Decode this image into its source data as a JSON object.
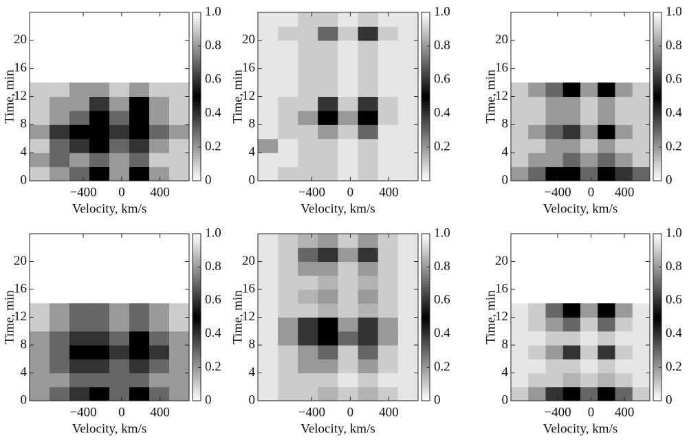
{
  "chart_data": [
    {
      "type": "heatmap",
      "x_label": "Velocity, km/s",
      "y_label": "Time, min",
      "x": [
        -856,
        -648,
        -440,
        -232,
        -24,
        184,
        392,
        600
      ],
      "y": [
        1,
        3,
        5,
        7,
        9,
        11,
        13,
        15,
        17,
        19,
        21,
        23
      ],
      "values": [
        [
          0.1,
          0.2,
          0.3,
          0.5,
          0.2,
          0.5,
          0.2,
          0.1
        ],
        [
          0.2,
          0.3,
          0.2,
          0.3,
          0.2,
          0.3,
          0.1,
          0.1
        ],
        [
          0.1,
          0.3,
          0.4,
          0.5,
          0.3,
          0.4,
          0.2,
          0.1
        ],
        [
          0.2,
          0.4,
          0.5,
          0.5,
          0.4,
          0.5,
          0.3,
          0.2
        ],
        [
          0.1,
          0.2,
          0.3,
          0.5,
          0.3,
          0.5,
          0.2,
          0.1
        ],
        [
          0.1,
          0.2,
          0.2,
          0.4,
          0.2,
          0.5,
          0.2,
          0.1
        ],
        [
          0.1,
          0.1,
          0.2,
          0.2,
          0.1,
          0.2,
          0.1,
          0.1
        ],
        [
          null,
          null,
          null,
          null,
          null,
          null,
          null,
          null
        ],
        [
          null,
          null,
          null,
          null,
          null,
          null,
          null,
          null
        ],
        [
          null,
          null,
          null,
          null,
          null,
          null,
          null,
          null
        ],
        [
          null,
          null,
          null,
          null,
          null,
          null,
          null,
          null
        ],
        [
          null,
          null,
          null,
          null,
          null,
          null,
          null,
          null
        ]
      ],
      "xlim": [
        -960,
        704
      ],
      "ylim": [
        0,
        24
      ],
      "xticks": [
        {
          "value": -400,
          "label": "−400"
        },
        0,
        400
      ],
      "yticks": [
        0,
        4,
        8,
        12,
        16,
        20
      ],
      "clim": [
        0,
        1
      ],
      "cticks": [
        0,
        0.2,
        0.4,
        0.6,
        0.8,
        {
          "value": 1,
          "label": "1.0"
        }
      ]
    },
    {
      "type": "heatmap",
      "x_label": "Velocity, km/s",
      "y_label": "Time, min",
      "x": [
        -856,
        -648,
        -440,
        -232,
        -24,
        184,
        392,
        600
      ],
      "y": [
        1,
        3,
        5,
        7,
        9,
        11,
        13,
        15,
        17,
        19,
        21,
        23
      ],
      "values": [
        [
          0.05,
          0.1,
          0.1,
          0.1,
          0.05,
          0.1,
          0.05,
          0.05
        ],
        [
          0.05,
          0.05,
          0.1,
          0.1,
          0.05,
          0.1,
          0.05,
          0.05
        ],
        [
          0.2,
          0.05,
          0.1,
          0.1,
          0.05,
          0.1,
          0.05,
          0.05
        ],
        [
          0.05,
          0.1,
          0.1,
          0.2,
          0.1,
          0.3,
          0.05,
          0.05
        ],
        [
          0.05,
          0.1,
          0.2,
          0.5,
          0.2,
          0.5,
          0.1,
          0.05
        ],
        [
          0.05,
          0.1,
          0.1,
          0.4,
          0.1,
          0.4,
          0.1,
          0.05
        ],
        [
          0.05,
          0.05,
          0.1,
          0.1,
          0.05,
          0.1,
          0.05,
          0.05
        ],
        [
          0.05,
          0.05,
          0.1,
          0.1,
          0.05,
          0.1,
          0.05,
          0.05
        ],
        [
          0.05,
          0.05,
          0.1,
          0.1,
          0.05,
          0.1,
          0.05,
          0.05
        ],
        [
          0.05,
          0.05,
          0.1,
          0.1,
          0.05,
          0.1,
          0.05,
          0.05
        ],
        [
          0.05,
          0.1,
          0.1,
          0.3,
          0.1,
          0.4,
          0.1,
          0.05
        ],
        [
          0.05,
          0.05,
          0.1,
          0.1,
          0.05,
          0.1,
          0.05,
          0.05
        ]
      ],
      "xlim": [
        -960,
        704
      ],
      "ylim": [
        0,
        24
      ],
      "xticks": [
        {
          "value": -400,
          "label": "−400"
        },
        0,
        400
      ],
      "yticks": [
        0,
        4,
        8,
        12,
        16,
        20
      ],
      "clim": [
        0,
        1
      ],
      "cticks": [
        0.2,
        0.4,
        0.6,
        0.8,
        {
          "value": 1,
          "label": "1.0"
        }
      ]
    },
    {
      "type": "heatmap",
      "x_label": "Velocity, km/s",
      "y_label": "Time, min",
      "x": [
        -856,
        -648,
        -440,
        -232,
        -24,
        184,
        392,
        600
      ],
      "y": [
        1,
        3,
        5,
        7,
        9,
        11,
        13,
        15,
        17,
        19,
        21,
        23
      ],
      "values": [
        [
          0.2,
          0.3,
          0.5,
          0.5,
          0.3,
          0.5,
          0.4,
          0.3
        ],
        [
          0.1,
          0.2,
          0.2,
          0.3,
          0.2,
          0.3,
          0.2,
          0.1
        ],
        [
          0.1,
          0.1,
          0.2,
          0.2,
          0.1,
          0.2,
          0.1,
          0.1
        ],
        [
          0.1,
          0.2,
          0.3,
          0.4,
          0.2,
          0.5,
          0.2,
          0.1
        ],
        [
          0.1,
          0.1,
          0.2,
          0.2,
          0.1,
          0.2,
          0.1,
          0.1
        ],
        [
          0.1,
          0.1,
          0.2,
          0.2,
          0.1,
          0.2,
          0.1,
          0.1
        ],
        [
          0.1,
          0.2,
          0.3,
          0.5,
          0.2,
          0.5,
          0.2,
          0.1
        ],
        [
          null,
          null,
          null,
          null,
          null,
          null,
          null,
          null
        ],
        [
          null,
          null,
          null,
          null,
          null,
          null,
          null,
          null
        ],
        [
          null,
          null,
          null,
          null,
          null,
          null,
          null,
          null
        ],
        [
          null,
          null,
          null,
          null,
          null,
          null,
          null,
          null
        ],
        [
          null,
          null,
          null,
          null,
          null,
          null,
          null,
          null
        ]
      ],
      "xlim": [
        -960,
        704
      ],
      "ylim": [
        0,
        24
      ],
      "xticks": [
        {
          "value": -400,
          "label": "−400"
        },
        0,
        400
      ],
      "yticks": [
        0,
        4,
        8,
        12,
        16,
        20
      ],
      "clim": [
        0,
        1
      ],
      "cticks": [
        0,
        0.2,
        0.4,
        0.6,
        0.8,
        {
          "value": 1,
          "label": "1.0"
        }
      ]
    },
    {
      "type": "heatmap",
      "x_label": "Velocity, km/s",
      "y_label": "Time, min",
      "x": [
        -856,
        -648,
        -440,
        -232,
        -24,
        184,
        392,
        600
      ],
      "y": [
        1,
        3,
        5,
        7,
        9,
        11,
        13,
        15,
        17,
        19,
        21,
        23
      ],
      "values": [
        [
          0.2,
          0.3,
          0.4,
          0.5,
          0.3,
          0.5,
          0.3,
          0.2
        ],
        [
          0.2,
          0.2,
          0.3,
          0.3,
          0.3,
          0.3,
          0.2,
          0.2
        ],
        [
          0.2,
          0.3,
          0.4,
          0.4,
          0.3,
          0.4,
          0.3,
          0.2
        ],
        [
          0.2,
          0.3,
          0.5,
          0.5,
          0.4,
          0.5,
          0.4,
          0.2
        ],
        [
          0.2,
          0.3,
          0.4,
          0.4,
          0.3,
          0.5,
          0.3,
          0.2
        ],
        [
          0.1,
          0.2,
          0.3,
          0.3,
          0.2,
          0.3,
          0.2,
          0.1
        ],
        [
          0.1,
          0.2,
          0.3,
          0.3,
          0.2,
          0.3,
          0.2,
          0.1
        ],
        [
          null,
          null,
          null,
          null,
          null,
          null,
          null,
          null
        ],
        [
          null,
          null,
          null,
          null,
          null,
          null,
          null,
          null
        ],
        [
          null,
          null,
          null,
          null,
          null,
          null,
          null,
          null
        ],
        [
          null,
          null,
          null,
          null,
          null,
          null,
          null,
          null
        ],
        [
          null,
          null,
          null,
          null,
          null,
          null,
          null,
          null
        ]
      ],
      "xlim": [
        -960,
        704
      ],
      "ylim": [
        0,
        24
      ],
      "xticks": [
        {
          "value": -400,
          "label": "−400"
        },
        0,
        400
      ],
      "yticks": [
        0,
        4,
        8,
        12,
        16,
        20
      ],
      "clim": [
        0,
        1
      ],
      "cticks": [
        0,
        0.2,
        0.4,
        0.6,
        0.8,
        {
          "value": 1,
          "label": "1.0"
        }
      ]
    },
    {
      "type": "heatmap",
      "x_label": "Velocity, km/s",
      "y_label": "Time, min",
      "x": [
        -856,
        -648,
        -440,
        -232,
        -24,
        184,
        392,
        600
      ],
      "y": [
        1,
        3,
        5,
        7,
        9,
        11,
        13,
        15,
        17,
        19,
        21,
        23
      ],
      "values": [
        [
          0.05,
          0.1,
          0.1,
          0.15,
          0.1,
          0.15,
          0.1,
          0.05
        ],
        [
          0.05,
          0.1,
          0.1,
          0.1,
          0.05,
          0.1,
          0.05,
          0.05
        ],
        [
          0.05,
          0.1,
          0.2,
          0.2,
          0.1,
          0.2,
          0.1,
          0.05
        ],
        [
          0.05,
          0.1,
          0.2,
          0.3,
          0.1,
          0.3,
          0.1,
          0.05
        ],
        [
          0.05,
          0.2,
          0.4,
          0.5,
          0.3,
          0.4,
          0.2,
          0.05
        ],
        [
          0.05,
          0.2,
          0.4,
          0.5,
          0.2,
          0.4,
          0.2,
          0.05
        ],
        [
          0.05,
          0.1,
          0.1,
          0.15,
          0.1,
          0.15,
          0.1,
          0.05
        ],
        [
          0.05,
          0.1,
          0.15,
          0.2,
          0.1,
          0.2,
          0.1,
          0.05
        ],
        [
          0.05,
          0.1,
          0.1,
          0.15,
          0.1,
          0.15,
          0.1,
          0.05
        ],
        [
          0.05,
          0.1,
          0.2,
          0.2,
          0.1,
          0.2,
          0.1,
          0.05
        ],
        [
          0.05,
          0.1,
          0.3,
          0.4,
          0.2,
          0.4,
          0.1,
          0.05
        ],
        [
          0.05,
          0.1,
          0.15,
          0.2,
          0.1,
          0.2,
          0.1,
          0.05
        ]
      ],
      "xlim": [
        -960,
        704
      ],
      "ylim": [
        0,
        24
      ],
      "xticks": [
        {
          "value": -400,
          "label": "−400"
        },
        0,
        400
      ],
      "yticks": [
        0,
        4,
        8,
        12,
        16,
        20
      ],
      "clim": [
        0,
        1
      ],
      "cticks": [
        0,
        0.2,
        0.4,
        0.6,
        0.8,
        {
          "value": 1,
          "label": "1.0"
        }
      ]
    },
    {
      "type": "heatmap",
      "x_label": "Velocity, km/s",
      "y_label": "Time, min",
      "x": [
        -856,
        -648,
        -440,
        -232,
        -24,
        184,
        392,
        600
      ],
      "y": [
        1,
        3,
        5,
        7,
        9,
        11,
        13,
        15,
        17,
        19,
        21,
        23
      ],
      "values": [
        [
          0.1,
          0.2,
          0.4,
          0.5,
          0.3,
          0.5,
          0.3,
          0.1
        ],
        [
          0.05,
          0.1,
          0.1,
          0.15,
          0.1,
          0.15,
          0.1,
          0.05
        ],
        [
          0.05,
          0.05,
          0.1,
          0.1,
          0.05,
          0.1,
          0.05,
          0.05
        ],
        [
          0.05,
          0.1,
          0.2,
          0.4,
          0.1,
          0.4,
          0.1,
          0.05
        ],
        [
          0.05,
          0.05,
          0.1,
          0.1,
          0.05,
          0.1,
          0.05,
          0.05
        ],
        [
          0.05,
          0.1,
          0.2,
          0.3,
          0.1,
          0.3,
          0.1,
          0.05
        ],
        [
          0.05,
          0.1,
          0.3,
          0.5,
          0.2,
          0.5,
          0.2,
          0.05
        ],
        [
          null,
          null,
          null,
          null,
          null,
          null,
          null,
          null
        ],
        [
          null,
          null,
          null,
          null,
          null,
          null,
          null,
          null
        ],
        [
          null,
          null,
          null,
          null,
          null,
          null,
          null,
          null
        ],
        [
          null,
          null,
          null,
          null,
          null,
          null,
          null,
          null
        ],
        [
          null,
          null,
          null,
          null,
          null,
          null,
          null,
          null
        ]
      ],
      "xlim": [
        -960,
        704
      ],
      "ylim": [
        0,
        24
      ],
      "xticks": [
        {
          "value": -400,
          "label": "−400"
        },
        0,
        400
      ],
      "yticks": [
        0,
        4,
        8,
        12,
        16,
        20
      ],
      "clim": [
        0,
        1
      ],
      "cticks": [
        0,
        0.2,
        0.4,
        0.6,
        0.8,
        {
          "value": 1,
          "label": "1.0"
        }
      ]
    }
  ]
}
